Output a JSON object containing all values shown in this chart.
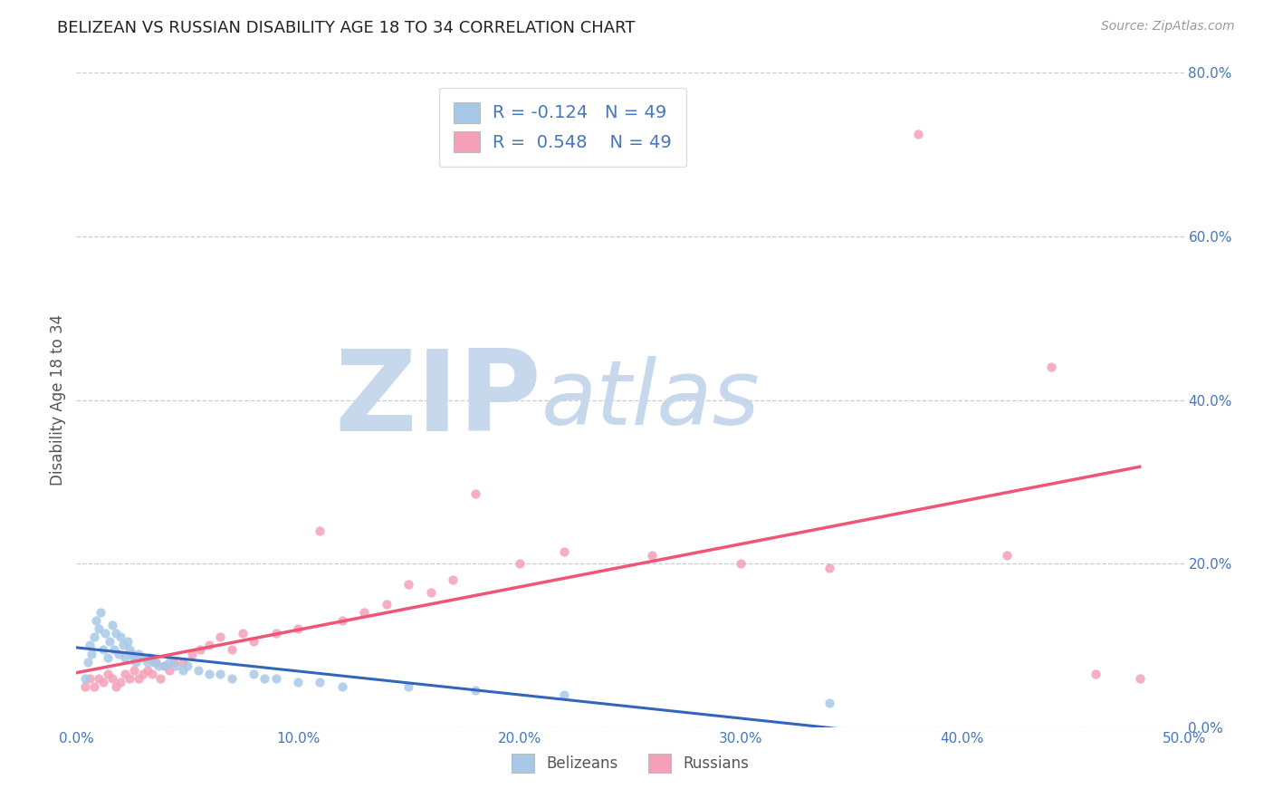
{
  "title": "BELIZEAN VS RUSSIAN DISABILITY AGE 18 TO 34 CORRELATION CHART",
  "source": "Source: ZipAtlas.com",
  "ylabel": "Disability Age 18 to 34",
  "xlim": [
    0.0,
    0.5
  ],
  "ylim": [
    0.0,
    0.8
  ],
  "xticks": [
    0.0,
    0.1,
    0.2,
    0.3,
    0.4,
    0.5
  ],
  "yticks_right": [
    0.0,
    0.2,
    0.4,
    0.6,
    0.8
  ],
  "x_tick_labels": [
    "0.0%",
    "10.0%",
    "20.0%",
    "30.0%",
    "40.0%",
    "50.0%"
  ],
  "y_tick_labels_right": [
    "0.0%",
    "20.0%",
    "40.0%",
    "60.0%",
    "80.0%"
  ],
  "belizean_R": -0.124,
  "belizean_N": 49,
  "russian_R": 0.548,
  "russian_N": 49,
  "belizean_scatter_color": "#a8c8e8",
  "russian_scatter_color": "#f4a0b8",
  "belizean_line_color": "#3366bb",
  "russian_line_color": "#ee5577",
  "watermark_zip": "ZIP",
  "watermark_atlas": "atlas",
  "watermark_color_zip": "#c8d8ec",
  "watermark_color_atlas": "#c8d8ec",
  "background_color": "#ffffff",
  "grid_color": "#cccccc",
  "title_color": "#222222",
  "axis_label_color": "#555555",
  "tick_label_color": "#4477bb",
  "legend_color": "#4477bb",
  "belizean_x": [
    0.004,
    0.005,
    0.006,
    0.007,
    0.008,
    0.009,
    0.01,
    0.011,
    0.012,
    0.013,
    0.014,
    0.015,
    0.016,
    0.017,
    0.018,
    0.019,
    0.02,
    0.021,
    0.022,
    0.023,
    0.024,
    0.025,
    0.026,
    0.027,
    0.028,
    0.03,
    0.032,
    0.033,
    0.035,
    0.037,
    0.04,
    0.042,
    0.045,
    0.048,
    0.05,
    0.055,
    0.06,
    0.065,
    0.07,
    0.08,
    0.085,
    0.09,
    0.1,
    0.11,
    0.12,
    0.15,
    0.18,
    0.22,
    0.34
  ],
  "belizean_y": [
    0.06,
    0.08,
    0.1,
    0.09,
    0.11,
    0.13,
    0.12,
    0.14,
    0.095,
    0.115,
    0.085,
    0.105,
    0.125,
    0.095,
    0.115,
    0.09,
    0.11,
    0.1,
    0.085,
    0.105,
    0.095,
    0.09,
    0.085,
    0.08,
    0.09,
    0.085,
    0.08,
    0.085,
    0.08,
    0.075,
    0.075,
    0.08,
    0.075,
    0.07,
    0.075,
    0.07,
    0.065,
    0.065,
    0.06,
    0.065,
    0.06,
    0.06,
    0.055,
    0.055,
    0.05,
    0.05,
    0.045,
    0.04,
    0.03
  ],
  "russian_x": [
    0.004,
    0.006,
    0.008,
    0.01,
    0.012,
    0.014,
    0.016,
    0.018,
    0.02,
    0.022,
    0.024,
    0.026,
    0.028,
    0.03,
    0.032,
    0.034,
    0.036,
    0.038,
    0.04,
    0.042,
    0.044,
    0.048,
    0.052,
    0.056,
    0.06,
    0.065,
    0.07,
    0.075,
    0.08,
    0.09,
    0.1,
    0.11,
    0.12,
    0.13,
    0.14,
    0.15,
    0.16,
    0.17,
    0.18,
    0.2,
    0.22,
    0.26,
    0.3,
    0.34,
    0.38,
    0.42,
    0.44,
    0.46,
    0.48
  ],
  "russian_y": [
    0.05,
    0.06,
    0.05,
    0.06,
    0.055,
    0.065,
    0.06,
    0.05,
    0.055,
    0.065,
    0.06,
    0.07,
    0.06,
    0.065,
    0.07,
    0.065,
    0.08,
    0.06,
    0.075,
    0.07,
    0.08,
    0.08,
    0.09,
    0.095,
    0.1,
    0.11,
    0.095,
    0.115,
    0.105,
    0.115,
    0.12,
    0.24,
    0.13,
    0.14,
    0.15,
    0.175,
    0.165,
    0.18,
    0.285,
    0.2,
    0.215,
    0.21,
    0.2,
    0.195,
    0.725,
    0.21,
    0.44,
    0.065,
    0.06
  ]
}
